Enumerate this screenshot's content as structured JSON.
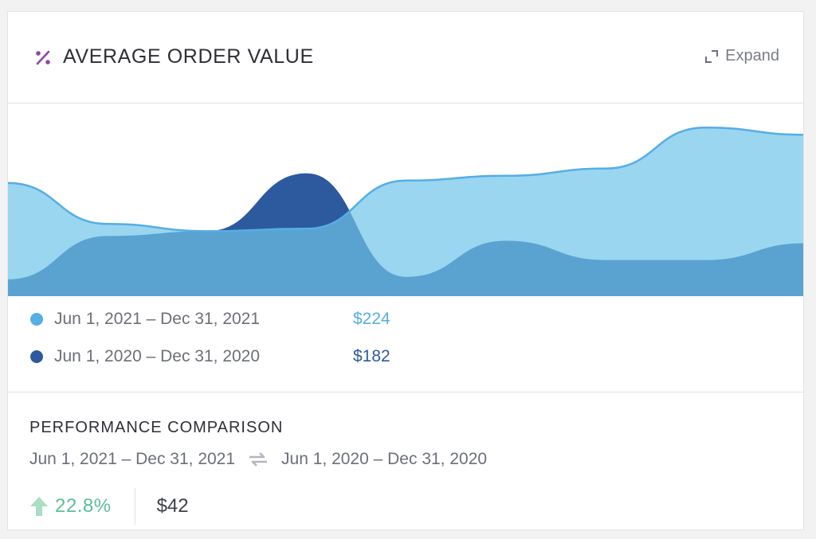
{
  "card": {
    "title": "AVERAGE ORDER VALUE",
    "title_icon": "percent-icon",
    "accent_color": "#8e44ad",
    "expand_label": "Expand",
    "expand_icon": "expand-icon"
  },
  "legend": {
    "items": [
      {
        "range": "Jun 1, 2021 – Dec 31, 2021",
        "value": "$224",
        "color": "#55aee4"
      },
      {
        "range": "Jun 1, 2020 – Dec 31, 2020",
        "value": "$182",
        "color": "#2d5a9e"
      }
    ]
  },
  "performance": {
    "title": "PERFORMANCE COMPARISON",
    "current_range": "Jun 1, 2021 – Dec 31, 2021",
    "previous_range": "Jun 1, 2020 – Dec 31, 2020",
    "swap_icon": "swap-arrows-icon",
    "change_icon": "arrow-up-icon",
    "change_percent": "22.8%",
    "change_color": "#5bbf94",
    "change_absolute": "$42"
  },
  "chart_data": {
    "type": "area",
    "xlabel": "",
    "ylabel": "",
    "grid": false,
    "legend_position": "below",
    "series": [
      {
        "color": "#9ad6f0",
        "edge_color": "#55aee4",
        "y": [
          0.47,
          0.3,
          0.27,
          0.28,
          0.48,
          0.5,
          0.53,
          0.7,
          0.67
        ]
      },
      {
        "color": "#5aa3d1",
        "y": [
          0.07,
          0.25,
          0.27,
          0.51,
          0.08,
          0.23,
          0.15,
          0.15,
          0.22
        ]
      }
    ]
  }
}
